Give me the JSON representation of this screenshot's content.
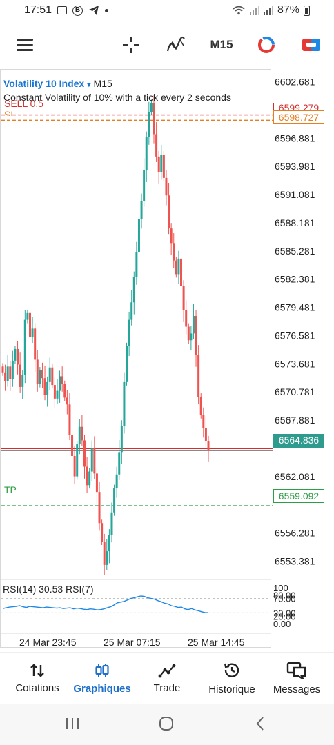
{
  "status_bar": {
    "time": "17:51",
    "battery": "87%"
  },
  "toolbar": {
    "timeframe": "M15",
    "icons": [
      "menu-icon",
      "crosshair-icon",
      "indicator-icon",
      "objects-icon",
      "trade-icon"
    ]
  },
  "chart": {
    "symbol": "Volatility 10 Index",
    "dropdown_arrow": "▾",
    "timeframe": "M15",
    "description": "Constant Volatility of 10% with a tick every 2 seconds",
    "sell_label": "SELL 0.5",
    "sl_label": "SL",
    "tp_label": "TP",
    "sell_price_box": "6599.279",
    "sl_price_box": "6598.727",
    "current_price_box": "6564.836",
    "tp_price_box": "6559.092",
    "price_labels": [
      "6602.681",
      "6596.881",
      "6593.981",
      "6591.081",
      "6588.181",
      "6585.281",
      "6582.381",
      "6579.481",
      "6576.581",
      "6573.681",
      "6570.781",
      "6567.881",
      "6562.081",
      "6556.281",
      "6553.381"
    ],
    "time_labels": [
      "24 Mar 23:45",
      "25 Mar 07:15",
      "25 Mar 14:45"
    ],
    "rsi_label": "RSI(14) 30.53 RSI(7)",
    "rsi_levels": [
      "100",
      "80.00",
      "70.00",
      "30.00",
      "20.00",
      "0.00"
    ],
    "colors": {
      "bull": "#26a69a",
      "bear": "#ef5350",
      "sell": "#d32f2f",
      "sl": "#e67e22",
      "tp": "#2e9e44",
      "current": "#2e9b8e",
      "rsi_line": "#1e88e5",
      "symbol": "#1976d2"
    }
  },
  "chart_data": {
    "type": "candlestick",
    "symbol": "Volatility 10 Index",
    "timeframe": "M15",
    "ylim": [
      6551.5,
      6604.0
    ],
    "x_tick_labels": [
      "24 Mar 23:45",
      "25 Mar 07:15",
      "25 Mar 14:45"
    ],
    "close": [
      6572.8,
      6571.9,
      6573.4,
      6572.1,
      6574.0,
      6575.2,
      6573.6,
      6571.3,
      6572.5,
      6578.2,
      6578.9,
      6576.4,
      6577.3,
      6574.1,
      6571.6,
      6573.0,
      6572.2,
      6570.5,
      6571.8,
      6573.3,
      6571.5,
      6570.1,
      6570.9,
      6572.4,
      6571.6,
      6570.2,
      6569.5,
      6566.4,
      6564.2,
      6562.1,
      6565.4,
      6567.2,
      6565.8,
      6563.1,
      6561.2,
      6562.6,
      6565.0,
      6562.4,
      6560.5,
      6557.3,
      6555.4,
      6553.0,
      6554.4,
      6556.1,
      6558.4,
      6560.9,
      6562.3,
      6564.6,
      6567.3,
      6571.8,
      6575.5,
      6578.2,
      6580.0,
      6582.6,
      6585.2,
      6588.6,
      6590.4,
      6593.6,
      6597.0,
      6599.6,
      6600.5,
      6597.3,
      6595.0,
      6593.4,
      6595.2,
      6592.8,
      6591.0,
      6587.6,
      6586.1,
      6584.3,
      6582.9,
      6584.5,
      6581.7,
      6579.2,
      6577.5,
      6576.1,
      6576.8,
      6578.6,
      6574.6,
      6570.3,
      6568.4,
      6567.1,
      6565.7,
      6564.8
    ],
    "current_price": 6564.836,
    "order_lines": [
      {
        "label": "SELL 0.5",
        "price": 6599.279
      },
      {
        "label": "SL",
        "price": 6598.727
      },
      {
        "label": "TP",
        "price": 6559.092
      }
    ],
    "rsi": {
      "label": "RSI(14) 30.53 RSI(7)",
      "current": 30.53,
      "levels": [
        70,
        30
      ],
      "ylim": [
        0,
        100
      ],
      "values": [
        42,
        44,
        46,
        47,
        48,
        50,
        47,
        45,
        48,
        47,
        46,
        45,
        44,
        46,
        45,
        44,
        43,
        44,
        42,
        43,
        44,
        41,
        43,
        42,
        40,
        39,
        41,
        40,
        38,
        39,
        41,
        44,
        47,
        52,
        58,
        60,
        62,
        66,
        70,
        72,
        75,
        77,
        76,
        72,
        70,
        68,
        64,
        61,
        57,
        55,
        50,
        48,
        45,
        46,
        41,
        39,
        42,
        38,
        36,
        33,
        31,
        30.53
      ]
    }
  },
  "bottom_nav": {
    "items": [
      {
        "label": "Cotations",
        "icon": "quotes-icon",
        "active": false
      },
      {
        "label": "Graphiques",
        "icon": "charts-icon",
        "active": true
      },
      {
        "label": "Trade",
        "icon": "trade-icon",
        "active": false
      },
      {
        "label": "Historique",
        "icon": "history-icon",
        "active": false
      },
      {
        "label": "Messages",
        "icon": "messages-icon",
        "active": false
      }
    ]
  }
}
